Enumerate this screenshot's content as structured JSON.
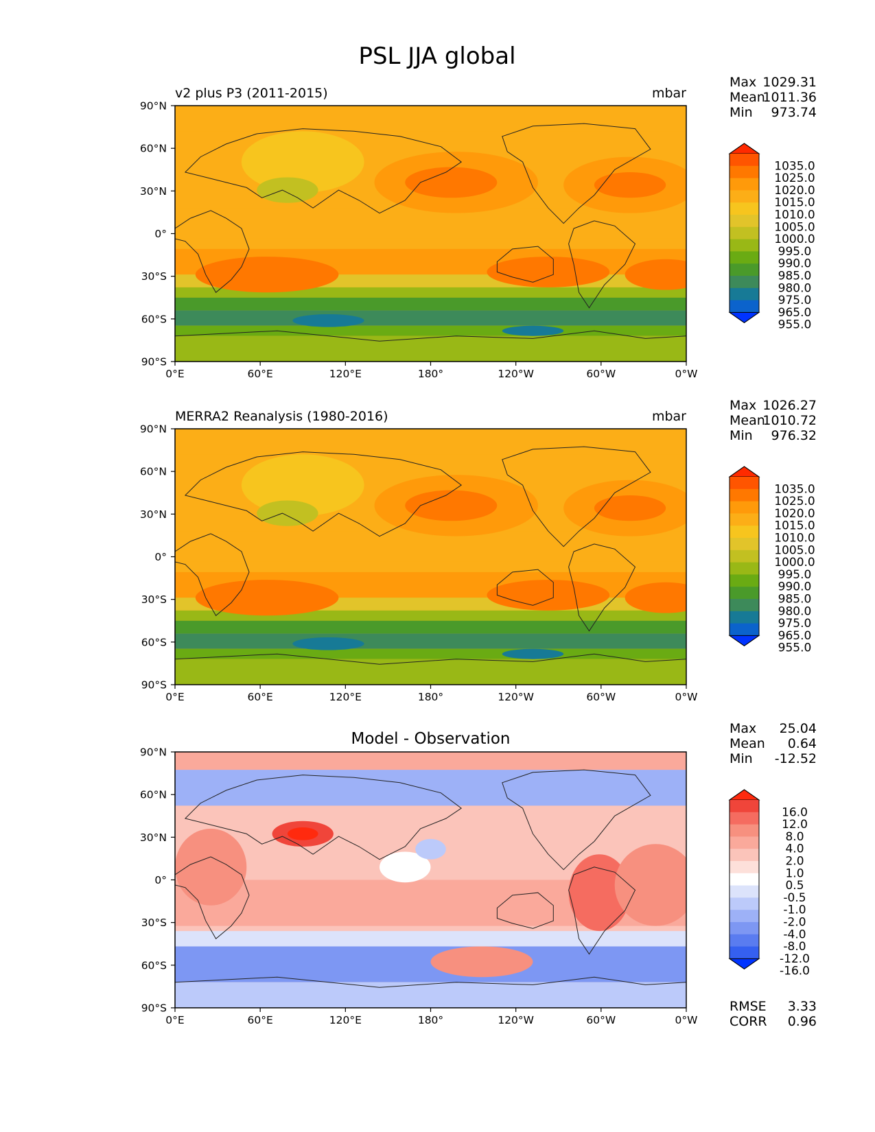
{
  "figure": {
    "title": "PSL JJA global"
  },
  "axes": {
    "x_ticks": [
      "0°E",
      "60°E",
      "120°E",
      "180°",
      "120°W",
      "60°W",
      "0°W"
    ],
    "y_ticks": [
      "90°N",
      "60°N",
      "30°N",
      "0°",
      "30°S",
      "60°S",
      "90°S"
    ]
  },
  "chart_data": [
    {
      "type": "heatmap",
      "title": "v2 plus P3 (2011-2015)",
      "units": "mbar",
      "stats": {
        "max_label": "Max",
        "max": "1029.31",
        "mean_label": "Mean",
        "mean": "1011.36",
        "min_label": "Min",
        "min": "973.74"
      },
      "colorbar": {
        "levels": [
          "1035.0",
          "1025.0",
          "1020.0",
          "1015.0",
          "1010.0",
          "1005.0",
          "1000.0",
          "995.0",
          "990.0",
          "985.0",
          "980.0",
          "975.0",
          "965.0",
          "955.0"
        ],
        "colors": [
          "#ff2a00",
          "#ff5500",
          "#ff7800",
          "#ff9a0a",
          "#fcae17",
          "#f7c51e",
          "#e2c42a",
          "#c2c021",
          "#99b816",
          "#6aab13",
          "#4a9a2a",
          "#3d8a5a",
          "#177a96",
          "#0b63cc",
          "#0033ff"
        ]
      },
      "field_style": "psl"
    },
    {
      "type": "heatmap",
      "title": "MERRA2 Reanalysis (1980-2016)",
      "units": "mbar",
      "stats": {
        "max_label": "Max",
        "max": "1026.27",
        "mean_label": "Mean",
        "mean": "1010.72",
        "min_label": "Min",
        "min": "976.32"
      },
      "colorbar": {
        "levels": [
          "1035.0",
          "1025.0",
          "1020.0",
          "1015.0",
          "1010.0",
          "1005.0",
          "1000.0",
          "995.0",
          "990.0",
          "985.0",
          "980.0",
          "975.0",
          "965.0",
          "955.0"
        ],
        "colors": [
          "#ff2a00",
          "#ff5500",
          "#ff7800",
          "#ff9a0a",
          "#fcae17",
          "#f7c51e",
          "#e2c42a",
          "#c2c021",
          "#99b816",
          "#6aab13",
          "#4a9a2a",
          "#3d8a5a",
          "#177a96",
          "#0b63cc",
          "#0033ff"
        ]
      },
      "field_style": "psl"
    },
    {
      "type": "heatmap",
      "title": "Model - Observation",
      "units": "",
      "stats": {
        "max_label": "Max",
        "max": "25.04",
        "mean_label": "Mean",
        "mean": "0.64",
        "min_label": "Min",
        "min": "-12.52"
      },
      "colorbar": {
        "levels": [
          "16.0",
          "12.0",
          "8.0",
          "4.0",
          "2.0",
          "1.0",
          "0.5",
          "-0.5",
          "-1.0",
          "-2.0",
          "-4.0",
          "-8.0",
          "-12.0",
          "-16.0"
        ],
        "colors": [
          "#ff2a0e",
          "#f0453a",
          "#f56c60",
          "#f7907f",
          "#faa99b",
          "#fbc4ba",
          "#fde0da",
          "#ffffff",
          "#dce3fb",
          "#bccafa",
          "#9db1f7",
          "#7d97f3",
          "#5a7cf0",
          "#3560f0",
          "#0033ff"
        ]
      },
      "field_style": "diff",
      "extra_stats": {
        "rmse_label": "RMSE",
        "rmse": "3.33",
        "corr_label": "CORR",
        "corr": "0.96"
      }
    }
  ]
}
